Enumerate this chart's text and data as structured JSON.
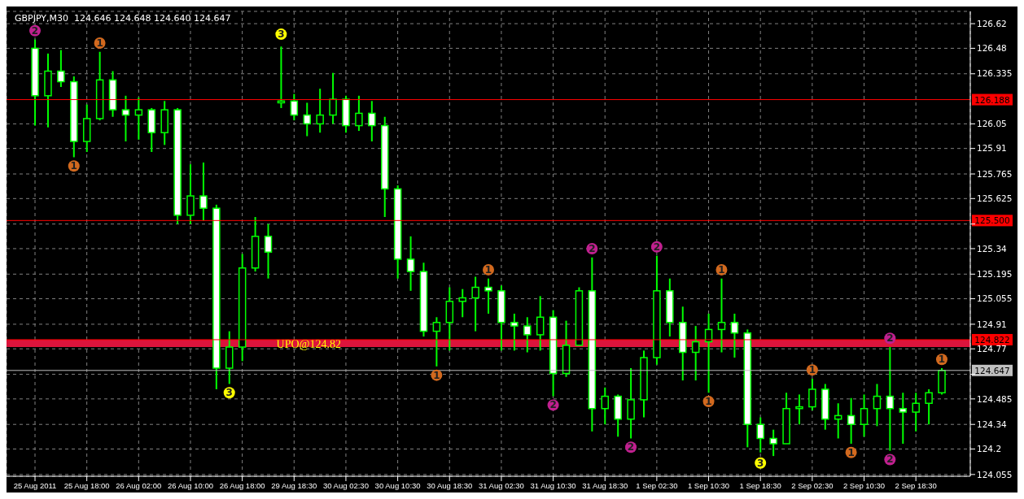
{
  "chart_data": {
    "type": "candlestick",
    "title": "GBPJPY,M30  124.646 124.648 124.640 124.647",
    "color": "#00ff00",
    "categories": [
      "25 Aug 2011",
      null,
      null,
      null,
      "25 Aug 18:00",
      null,
      null,
      null,
      "26 Aug 02:00",
      null,
      null,
      null,
      "26 Aug 10:00",
      null,
      null,
      null,
      "26 Aug 18:00",
      null,
      null,
      null,
      "29 Aug 18:30",
      null,
      null,
      null,
      "30 Aug 02:30",
      null,
      null,
      null,
      "30 Aug 10:30",
      null,
      null,
      null,
      "30 Aug 18:30",
      null,
      null,
      null,
      "31 Aug 02:30",
      null,
      null,
      null,
      "31 Aug 10:30",
      null,
      null,
      null,
      "31 Aug 18:30",
      null,
      null,
      null,
      "1 Sep 02:30",
      null,
      null,
      null,
      "1 Sep 10:30",
      null,
      null,
      null,
      "1 Sep 18:30",
      null,
      null,
      null,
      "2 Sep 02:30",
      null,
      null,
      null,
      "2 Sep 10:30",
      null,
      null,
      null,
      "2 Sep 18:30",
      null,
      null
    ],
    "ohlc": [
      [
        126.48,
        126.53,
        126.04,
        126.21
      ],
      [
        126.21,
        126.45,
        126.03,
        126.35
      ],
      [
        126.35,
        126.47,
        126.26,
        126.29
      ],
      [
        126.29,
        126.32,
        125.86,
        125.95
      ],
      [
        125.95,
        126.16,
        125.89,
        126.08
      ],
      [
        126.08,
        126.46,
        126.07,
        126.3
      ],
      [
        126.3,
        126.35,
        126.09,
        126.13
      ],
      [
        126.13,
        126.21,
        125.95,
        126.1
      ],
      [
        126.1,
        126.2,
        125.96,
        126.13
      ],
      [
        126.13,
        126.14,
        125.89,
        126.0
      ],
      [
        126.0,
        126.18,
        125.93,
        126.13
      ],
      [
        126.13,
        126.14,
        125.48,
        125.53
      ],
      [
        125.53,
        125.82,
        125.48,
        125.64
      ],
      [
        125.64,
        125.83,
        125.5,
        125.57
      ],
      [
        125.57,
        125.59,
        124.54,
        124.66
      ],
      [
        124.66,
        124.87,
        124.57,
        124.78
      ],
      [
        124.78,
        125.31,
        124.7,
        125.23
      ],
      [
        125.23,
        125.52,
        125.21,
        125.41
      ],
      [
        125.41,
        125.48,
        125.17,
        125.32
      ],
      [
        126.17,
        126.49,
        126.14,
        126.18
      ],
      [
        126.18,
        126.22,
        126.07,
        126.1
      ],
      [
        126.1,
        126.17,
        125.98,
        126.05
      ],
      [
        126.05,
        126.25,
        126.0,
        126.1
      ],
      [
        126.1,
        126.34,
        126.05,
        126.19
      ],
      [
        126.19,
        126.21,
        126.0,
        126.04
      ],
      [
        126.04,
        126.21,
        126.01,
        126.11
      ],
      [
        126.11,
        126.18,
        125.95,
        126.04
      ],
      [
        126.04,
        126.09,
        125.52,
        125.68
      ],
      [
        125.68,
        125.7,
        125.17,
        125.28
      ],
      [
        125.28,
        125.41,
        125.1,
        125.21
      ],
      [
        125.21,
        125.26,
        124.84,
        124.87
      ],
      [
        124.87,
        124.95,
        124.67,
        124.92
      ],
      [
        124.92,
        125.12,
        124.76,
        125.04
      ],
      [
        125.04,
        125.11,
        124.95,
        125.06
      ],
      [
        125.06,
        125.18,
        124.87,
        125.12
      ],
      [
        125.12,
        125.17,
        124.97,
        125.1
      ],
      [
        125.1,
        125.13,
        124.76,
        124.92
      ],
      [
        124.92,
        124.97,
        124.76,
        124.9
      ],
      [
        124.9,
        124.95,
        124.75,
        124.85
      ],
      [
        124.85,
        125.07,
        124.76,
        124.95
      ],
      [
        124.95,
        124.99,
        124.5,
        124.63
      ],
      [
        124.63,
        124.93,
        124.61,
        124.79
      ],
      [
        124.79,
        125.12,
        124.79,
        125.1
      ],
      [
        125.1,
        125.29,
        124.3,
        124.43
      ],
      [
        124.43,
        124.55,
        124.34,
        124.5
      ],
      [
        124.5,
        124.51,
        124.27,
        124.37
      ],
      [
        124.37,
        124.66,
        124.26,
        124.48
      ],
      [
        124.48,
        124.76,
        124.38,
        124.72
      ],
      [
        124.72,
        125.3,
        124.68,
        125.1
      ],
      [
        125.1,
        125.17,
        124.84,
        124.92
      ],
      [
        124.92,
        125.01,
        124.59,
        124.75
      ],
      [
        124.75,
        124.9,
        124.59,
        124.81
      ],
      [
        124.81,
        124.97,
        124.52,
        124.88
      ],
      [
        124.88,
        125.17,
        124.75,
        124.92
      ],
      [
        124.92,
        124.97,
        124.72,
        124.86
      ],
      [
        124.86,
        124.88,
        124.21,
        124.34
      ],
      [
        124.34,
        124.38,
        124.18,
        124.26
      ],
      [
        124.26,
        124.31,
        124.16,
        124.23
      ],
      [
        124.23,
        124.52,
        124.23,
        124.43
      ],
      [
        124.43,
        124.51,
        124.34,
        124.44
      ],
      [
        124.44,
        124.6,
        124.42,
        124.54
      ],
      [
        124.54,
        124.57,
        124.31,
        124.37
      ],
      [
        124.37,
        124.46,
        124.26,
        124.39
      ],
      [
        124.39,
        124.49,
        124.23,
        124.34
      ],
      [
        124.34,
        124.51,
        124.27,
        124.43
      ],
      [
        124.43,
        124.57,
        124.33,
        124.5
      ],
      [
        124.5,
        124.78,
        124.19,
        124.43
      ],
      [
        124.43,
        124.52,
        124.23,
        124.41
      ],
      [
        124.41,
        124.52,
        124.3,
        124.46
      ],
      [
        124.46,
        124.54,
        124.34,
        124.52
      ],
      [
        124.52,
        124.66,
        124.51,
        124.647
      ]
    ],
    "series": [
      {
        "type": "scatter",
        "name": "3",
        "color": "#ffff00",
        "marker": "circle",
        "values": [
          null,
          null,
          null,
          null,
          null,
          null,
          null,
          null,
          null,
          null,
          null,
          null,
          null,
          null,
          null,
          124.52,
          null,
          null,
          null,
          126.56,
          null,
          null,
          null,
          null,
          null,
          null,
          null,
          null,
          null,
          null,
          null,
          null,
          null,
          null,
          null,
          null,
          null,
          null,
          null,
          null,
          null,
          null,
          null,
          null,
          null,
          null,
          null,
          null,
          null,
          null,
          null,
          null,
          null,
          null,
          null,
          null,
          124.12,
          null,
          null,
          null,
          null,
          null,
          null,
          null,
          null,
          null,
          null,
          null,
          null,
          null,
          null
        ]
      },
      {
        "type": "scatter",
        "name": "1",
        "color": "#d2691e",
        "marker": "circle",
        "values": [
          null,
          null,
          null,
          125.81,
          null,
          126.51,
          null,
          null,
          null,
          null,
          null,
          null,
          null,
          null,
          null,
          null,
          null,
          null,
          null,
          null,
          null,
          null,
          null,
          null,
          null,
          null,
          null,
          null,
          null,
          null,
          null,
          124.62,
          null,
          null,
          null,
          125.22,
          null,
          null,
          null,
          null,
          null,
          null,
          null,
          null,
          null,
          null,
          null,
          null,
          null,
          null,
          null,
          null,
          124.47,
          125.22,
          null,
          null,
          null,
          null,
          null,
          null,
          124.65,
          null,
          null,
          124.18,
          null,
          null,
          null,
          null,
          null,
          null,
          124.71
        ]
      },
      {
        "type": "scatter",
        "name": "2",
        "color": "#c0208f",
        "marker": "circle",
        "values": [
          126.58,
          null,
          null,
          null,
          null,
          null,
          null,
          null,
          null,
          null,
          null,
          null,
          null,
          null,
          null,
          null,
          null,
          null,
          null,
          null,
          null,
          null,
          null,
          null,
          null,
          null,
          null,
          null,
          null,
          null,
          null,
          null,
          null,
          null,
          null,
          null,
          null,
          null,
          null,
          null,
          null,
          null,
          null,
          125.34,
          null,
          null,
          null,
          null,
          125.35,
          null,
          null,
          null,
          null,
          null,
          null,
          null,
          null,
          null,
          null,
          null,
          null,
          null,
          null,
          null,
          null,
          null,
          124.83,
          null,
          null,
          null,
          null
        ]
      },
      {
        "type": "scatter",
        "name": "2",
        "color": "#c0208f",
        "marker": "circle",
        "values": [
          null,
          null,
          null,
          null,
          null,
          null,
          null,
          null,
          null,
          null,
          null,
          null,
          null,
          null,
          null,
          null,
          null,
          null,
          null,
          null,
          null,
          null,
          null,
          null,
          null,
          null,
          null,
          null,
          null,
          null,
          null,
          null,
          null,
          null,
          null,
          null,
          null,
          null,
          null,
          null,
          124.45,
          null,
          null,
          null,
          null,
          null,
          124.21,
          null,
          null,
          null,
          null,
          null,
          null,
          null,
          null,
          null,
          null,
          null,
          null,
          null,
          null,
          null,
          null,
          null,
          null,
          null,
          124.14,
          null,
          null,
          null,
          null
        ]
      }
    ],
    "ylim": [
      124.045,
      126.69
    ],
    "yticks": [
      124.055,
      124.2,
      124.34,
      124.485,
      {
        "value": 124.625,
        "label": null
      },
      124.77,
      124.91,
      125.055,
      125.195,
      125.34,
      {
        "value": 125.48,
        "label": null
      },
      125.625,
      125.765,
      125.91,
      126.05,
      126.335,
      126.48,
      126.62
    ],
    "ref_lines": [
      {
        "axis": "y",
        "value": 126.188,
        "label": "126.188",
        "color": "#ff0000",
        "line_style": "solid"
      },
      {
        "axis": "y",
        "value": 125.5,
        "label": "125.500",
        "color": "#ff0000",
        "line_style": "solid"
      },
      {
        "axis": "y",
        "value": 124.822,
        "label": "124.822",
        "color": "#ff0000",
        "line_style": "solid"
      },
      {
        "axis": "y",
        "value": 124.647,
        "label": "124.647",
        "color": "#c0c0c0",
        "line_style": "solid"
      }
    ],
    "bands": [
      {
        "axis": "y",
        "from": 124.78,
        "to": 124.822,
        "label": "UPO@124.82",
        "color": "#dc143c"
      }
    ],
    "grid": true,
    "legend": false
  }
}
